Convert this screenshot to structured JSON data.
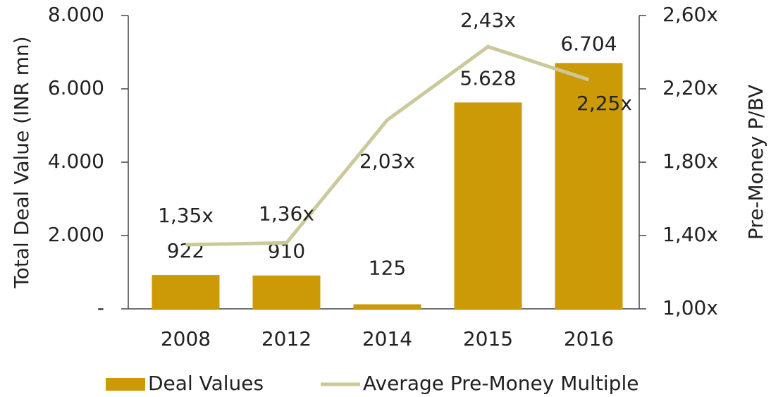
{
  "chart_data": {
    "type": "bar",
    "categories": [
      "2008",
      "2012",
      "2014",
      "2015",
      "2016"
    ],
    "ylabel": "Total Deal Value (INR mn)",
    "y2label": "Pre-Money P/BV",
    "ylim": [
      0,
      8000
    ],
    "yticks": [
      {
        "value": 0,
        "label": "-"
      },
      {
        "value": 2000,
        "label": "2.000"
      },
      {
        "value": 4000,
        "label": "4.000"
      },
      {
        "value": 6000,
        "label": "6.000"
      },
      {
        "value": 8000,
        "label": "8.000"
      }
    ],
    "y2lim": [
      1.0,
      2.6
    ],
    "y2ticks": [
      {
        "value": 1.0,
        "label": "1,00x"
      },
      {
        "value": 1.4,
        "label": "1,40x"
      },
      {
        "value": 1.8,
        "label": "1,80x"
      },
      {
        "value": 2.2,
        "label": "2,20x"
      },
      {
        "value": 2.6,
        "label": "2,60x"
      }
    ],
    "series": [
      {
        "name": "Deal Values",
        "type": "bar",
        "color": "#cc9a06",
        "values": [
          922,
          910,
          125,
          5628,
          6704
        ],
        "value_labels": [
          "922",
          "910",
          "125",
          "5.628",
          "6.704"
        ]
      },
      {
        "name": "Average Pre-Money Multiple",
        "type": "line",
        "axis": "y2",
        "color": "#cbc99b",
        "values": [
          1.35,
          1.36,
          2.03,
          2.43,
          2.25
        ],
        "value_labels": [
          "1,35x",
          "1,36x",
          "2,03x",
          "2,43x",
          "2,25x"
        ]
      }
    ],
    "legend": "bottom"
  }
}
